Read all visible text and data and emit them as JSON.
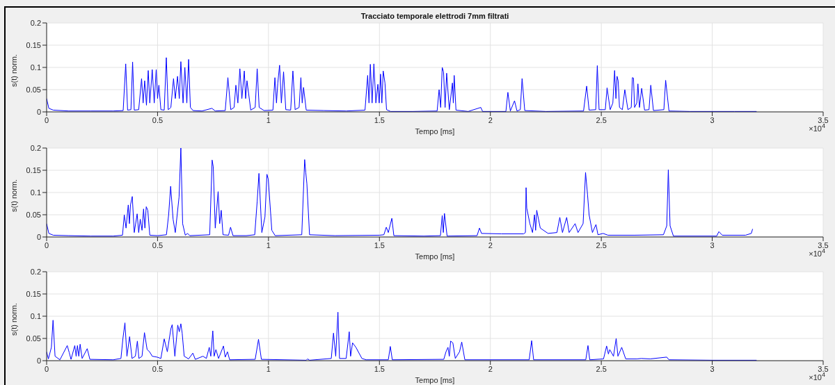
{
  "chart_data": [
    {
      "type": "line",
      "title": "Tracciato temporale elettrodi 7mm filtrati",
      "xlabel": "Tempo [ms]",
      "ylabel": "s(t) norm.",
      "annotations": [
        "×10$^{4}$"
      ],
      "color": "#0000ff",
      "grid": true,
      "xlim": [
        0,
        3.5
      ],
      "xticks": [
        0,
        0.5,
        1,
        1.5,
        2,
        2.5,
        3,
        3.5
      ],
      "ylim": [
        0,
        0.2
      ],
      "yticks": [
        0,
        0.05,
        0.1,
        0.15,
        0.2
      ],
      "x": [
        0,
        0.01,
        0.03,
        0.1,
        0.2,
        0.3,
        0.345,
        0.3565,
        0.365,
        0.38,
        0.3876,
        0.395,
        0.415,
        0.428,
        0.435,
        0.442,
        0.45,
        0.458,
        0.465,
        0.476,
        0.485,
        0.494,
        0.5,
        0.506,
        0.515,
        0.53,
        0.5395,
        0.548,
        0.56,
        0.572,
        0.58,
        0.59,
        0.598,
        0.605,
        0.615,
        0.623,
        0.632,
        0.64,
        0.648,
        0.66,
        0.7,
        0.745,
        0.76,
        0.805,
        0.817,
        0.83,
        0.845,
        0.853,
        0.862,
        0.871,
        0.88,
        0.891,
        0.897,
        0.903,
        0.92,
        0.94,
        0.949,
        0.958,
        0.98,
        1.02,
        1.029,
        1.036,
        1.042,
        1.05,
        1.058,
        1.068,
        1.078,
        1.1,
        1.11,
        1.12,
        1.138,
        1.146,
        1.152,
        1.158,
        1.17,
        1.25,
        1.35,
        1.435,
        1.447,
        1.453,
        1.459,
        1.467,
        1.475,
        1.484,
        1.493,
        1.499,
        1.505,
        1.511,
        1.517,
        1.525,
        1.532,
        1.55,
        1.65,
        1.76,
        1.769,
        1.776,
        1.783,
        1.789,
        1.796,
        1.803,
        1.815,
        1.829,
        1.833,
        1.837,
        1.845,
        1.9,
        1.957,
        1.965,
        2.07,
        2.079,
        2.09,
        2.109,
        2.12,
        2.135,
        2.143,
        2.155,
        2.25,
        2.42,
        2.434,
        2.445,
        2.475,
        2.482,
        2.49,
        2.518,
        2.526,
        2.54,
        2.552,
        2.56,
        2.566,
        2.571,
        2.576,
        2.582,
        2.595,
        2.606,
        2.62,
        2.635,
        2.64,
        2.645,
        2.65,
        2.66,
        2.665,
        2.672,
        2.682,
        2.695,
        2.715,
        2.723,
        2.735,
        2.782,
        2.79,
        2.805,
        2.9,
        3.1,
        3.2
      ],
      "values": [
        0.03,
        0.008,
        0.004,
        0.002,
        0.002,
        0.002,
        0.003,
        0.108,
        0.004,
        0.005,
        0.112,
        0.004,
        0.005,
        0.075,
        0.02,
        0.07,
        0.015,
        0.093,
        0.02,
        0.095,
        0.02,
        0.095,
        0.03,
        0.06,
        0.005,
        0.004,
        0.122,
        0.005,
        0.01,
        0.075,
        0.03,
        0.08,
        0.03,
        0.113,
        0.02,
        0.1,
        0.02,
        0.118,
        0.01,
        0.003,
        0.002,
        0.008,
        0.002,
        0.003,
        0.077,
        0.005,
        0.01,
        0.06,
        0.02,
        0.097,
        0.03,
        0.092,
        0.03,
        0.07,
        0.004,
        0.01,
        0.097,
        0.01,
        0.003,
        0.004,
        0.077,
        0.02,
        0.065,
        0.105,
        0.02,
        0.09,
        0.005,
        0.004,
        0.092,
        0.005,
        0.01,
        0.077,
        0.02,
        0.055,
        0.004,
        0.003,
        0.002,
        0.004,
        0.082,
        0.02,
        0.107,
        0.02,
        0.108,
        0.02,
        0.062,
        0.02,
        0.085,
        0.02,
        0.092,
        0.065,
        0.005,
        0.001,
        0.001,
        0.002,
        0.05,
        0.01,
        0.1,
        0.09,
        0.01,
        0.087,
        0.005,
        0.065,
        0.02,
        0.082,
        0.004,
        0.001,
        0.01,
        0.001,
        0.001,
        0.044,
        0.002,
        0.025,
        0.002,
        0.005,
        0.075,
        0.003,
        0.001,
        0.002,
        0.058,
        0.004,
        0.005,
        0.104,
        0.005,
        0.005,
        0.054,
        0.005,
        0.02,
        0.093,
        0.03,
        0.08,
        0.07,
        0.01,
        0.005,
        0.05,
        0.005,
        0.01,
        0.077,
        0.076,
        0.01,
        0.02,
        0.063,
        0.01,
        0.053,
        0.004,
        0.005,
        0.06,
        0.003,
        0.005,
        0.071,
        0.002,
        0.001,
        0.001,
        0.001
      ]
    },
    {
      "type": "line",
      "xlabel": "Tempo [ms]",
      "ylabel": "s(t) norm.",
      "annotations": [
        "×10$^{4}$"
      ],
      "color": "#0000ff",
      "grid": true,
      "xlim": [
        0,
        3.5
      ],
      "xticks": [
        0,
        0.5,
        1,
        1.5,
        2,
        2.5,
        3,
        3.5
      ],
      "ylim": [
        0,
        0.2
      ],
      "yticks": [
        0,
        0.05,
        0.1,
        0.15,
        0.2
      ],
      "x": [
        0,
        0.01,
        0.03,
        0.1,
        0.2,
        0.3,
        0.342,
        0.35,
        0.358,
        0.368,
        0.373,
        0.378,
        0.386,
        0.395,
        0.408,
        0.415,
        0.422,
        0.43,
        0.437,
        0.443,
        0.449,
        0.456,
        0.465,
        0.5,
        0.54,
        0.55,
        0.559,
        0.57,
        0.58,
        0.597,
        0.605,
        0.613,
        0.625,
        0.635,
        0.645,
        0.735,
        0.746,
        0.751,
        0.76,
        0.773,
        0.78,
        0.787,
        0.795,
        0.82,
        0.829,
        0.84,
        0.9,
        0.938,
        0.949,
        0.957,
        0.97,
        0.984,
        0.993,
        0.999,
        1.015,
        1.03,
        1.15,
        1.163,
        1.168,
        1.173,
        1.185,
        1.3,
        1.5,
        1.52,
        1.531,
        1.54,
        1.556,
        1.565,
        1.7,
        1.775,
        1.783,
        1.788,
        1.793,
        1.805,
        1.94,
        1.951,
        1.96,
        2.05,
        2.15,
        2.158,
        2.161,
        2.164,
        2.178,
        2.19,
        2.199,
        2.204,
        2.209,
        2.225,
        2.26,
        2.3,
        2.313,
        2.325,
        2.344,
        2.355,
        2.382,
        2.395,
        2.418,
        2.429,
        2.438,
        2.445,
        2.46,
        2.476,
        2.485,
        2.508,
        2.53,
        2.65,
        2.78,
        2.795,
        2.802,
        2.81,
        2.825,
        3.02,
        3.03,
        3.045,
        3.15,
        3.176,
        3.182
      ],
      "values": [
        0.03,
        0.008,
        0.004,
        0.003,
        0.002,
        0.002,
        0.004,
        0.05,
        0.02,
        0.072,
        0.03,
        0.072,
        0.091,
        0.01,
        0.052,
        0.01,
        0.04,
        0.015,
        0.063,
        0.02,
        0.068,
        0.06,
        0.004,
        0.003,
        0.005,
        0.05,
        0.114,
        0.04,
        0.01,
        0.09,
        0.2,
        0.03,
        0.004,
        0.008,
        0.003,
        0.005,
        0.173,
        0.158,
        0.02,
        0.102,
        0.03,
        0.06,
        0.005,
        0.004,
        0.022,
        0.003,
        0.003,
        0.005,
        0.08,
        0.143,
        0.01,
        0.045,
        0.141,
        0.13,
        0.015,
        0.003,
        0.005,
        0.174,
        0.145,
        0.12,
        0.005,
        0.003,
        0.004,
        0.005,
        0.022,
        0.01,
        0.042,
        0.003,
        0.002,
        0.003,
        0.048,
        0.01,
        0.053,
        0.002,
        0.003,
        0.02,
        0.008,
        0.007,
        0.007,
        0.01,
        0.111,
        0.065,
        0.03,
        0.01,
        0.05,
        0.015,
        0.06,
        0.02,
        0.008,
        0.01,
        0.044,
        0.01,
        0.044,
        0.01,
        0.03,
        0.01,
        0.03,
        0.145,
        0.095,
        0.05,
        0.01,
        0.028,
        0.005,
        0.008,
        0.004,
        0.004,
        0.005,
        0.025,
        0.151,
        0.025,
        0.002,
        0.002,
        0.012,
        0.004,
        0.004,
        0.008,
        0.018
      ]
    },
    {
      "type": "line",
      "xlabel": "Tempo [ms]",
      "ylabel": "s(t) norm.",
      "annotations": [
        "×10$^{4}$"
      ],
      "color": "#0000ff",
      "grid": true,
      "xlim": [
        0,
        3.5
      ],
      "xticks": [
        0,
        0.5,
        1,
        1.5,
        2,
        2.5,
        3,
        3.5
      ],
      "ylim": [
        0,
        0.2
      ],
      "yticks": [
        0,
        0.05,
        0.1,
        0.15,
        0.2
      ],
      "x": [
        0,
        0.008,
        0.0215,
        0.029,
        0.038,
        0.06,
        0.093,
        0.102,
        0.11,
        0.127,
        0.133,
        0.139,
        0.145,
        0.151,
        0.16,
        0.183,
        0.195,
        0.3,
        0.335,
        0.344,
        0.353,
        0.362,
        0.374,
        0.385,
        0.4,
        0.409,
        0.416,
        0.43,
        0.441,
        0.453,
        0.464,
        0.476,
        0.498,
        0.515,
        0.53,
        0.544,
        0.56,
        0.566,
        0.578,
        0.591,
        0.598,
        0.605,
        0.611,
        0.62,
        0.64,
        0.659,
        0.67,
        0.705,
        0.72,
        0.733,
        0.74,
        0.749,
        0.755,
        0.763,
        0.775,
        0.797,
        0.805,
        0.815,
        0.825,
        0.94,
        0.955,
        0.968,
        1.17,
        1.176,
        1.185,
        1.283,
        1.293,
        1.303,
        1.313,
        1.32,
        1.35,
        1.364,
        1.37,
        1.379,
        1.394,
        1.421,
        1.44,
        1.54,
        1.549,
        1.558,
        1.79,
        1.8,
        1.809,
        1.815,
        1.821,
        1.831,
        1.842,
        1.861,
        1.871,
        1.885,
        2.175,
        2.186,
        2.195,
        2.43,
        2.44,
        2.448,
        2.51,
        2.524,
        2.532,
        2.538,
        2.555,
        2.567,
        2.575,
        2.592,
        2.61,
        2.66,
        2.68,
        2.72,
        2.795,
        2.805,
        3,
        3.2
      ],
      "values": [
        0.02,
        0.004,
        0.03,
        0.091,
        0.01,
        0.002,
        0.034,
        0.018,
        0.003,
        0.034,
        0.01,
        0.034,
        0.01,
        0.037,
        0.005,
        0.027,
        0.003,
        0.002,
        0.005,
        0.05,
        0.085,
        0.01,
        0.054,
        0.005,
        0.01,
        0.044,
        0.005,
        0.01,
        0.063,
        0.025,
        0.02,
        0.01,
        0.008,
        0.005,
        0.049,
        0.02,
        0.072,
        0.081,
        0.01,
        0.08,
        0.065,
        0.083,
        0.062,
        0.01,
        0.004,
        0.017,
        0.003,
        0.01,
        0.005,
        0.03,
        0.01,
        0.067,
        0.01,
        0.025,
        0.005,
        0.033,
        0.008,
        0.02,
        0.002,
        0.003,
        0.048,
        0.003,
        0.001,
        0.004,
        0.001,
        0.005,
        0.062,
        0.01,
        0.109,
        0.005,
        0.005,
        0.065,
        0.01,
        0.04,
        0.03,
        0.005,
        0.002,
        0.002,
        0.032,
        0.002,
        0.003,
        0.02,
        0.03,
        0.01,
        0.044,
        0.04,
        0.005,
        0.02,
        0.042,
        0.002,
        0.002,
        0.045,
        0.002,
        0.002,
        0.034,
        0.002,
        0.004,
        0.033,
        0.015,
        0.025,
        0.01,
        0.05,
        0.01,
        0.03,
        0.004,
        0.004,
        0.005,
        0.004,
        0.008,
        0.002,
        0.001,
        0.001
      ]
    }
  ]
}
